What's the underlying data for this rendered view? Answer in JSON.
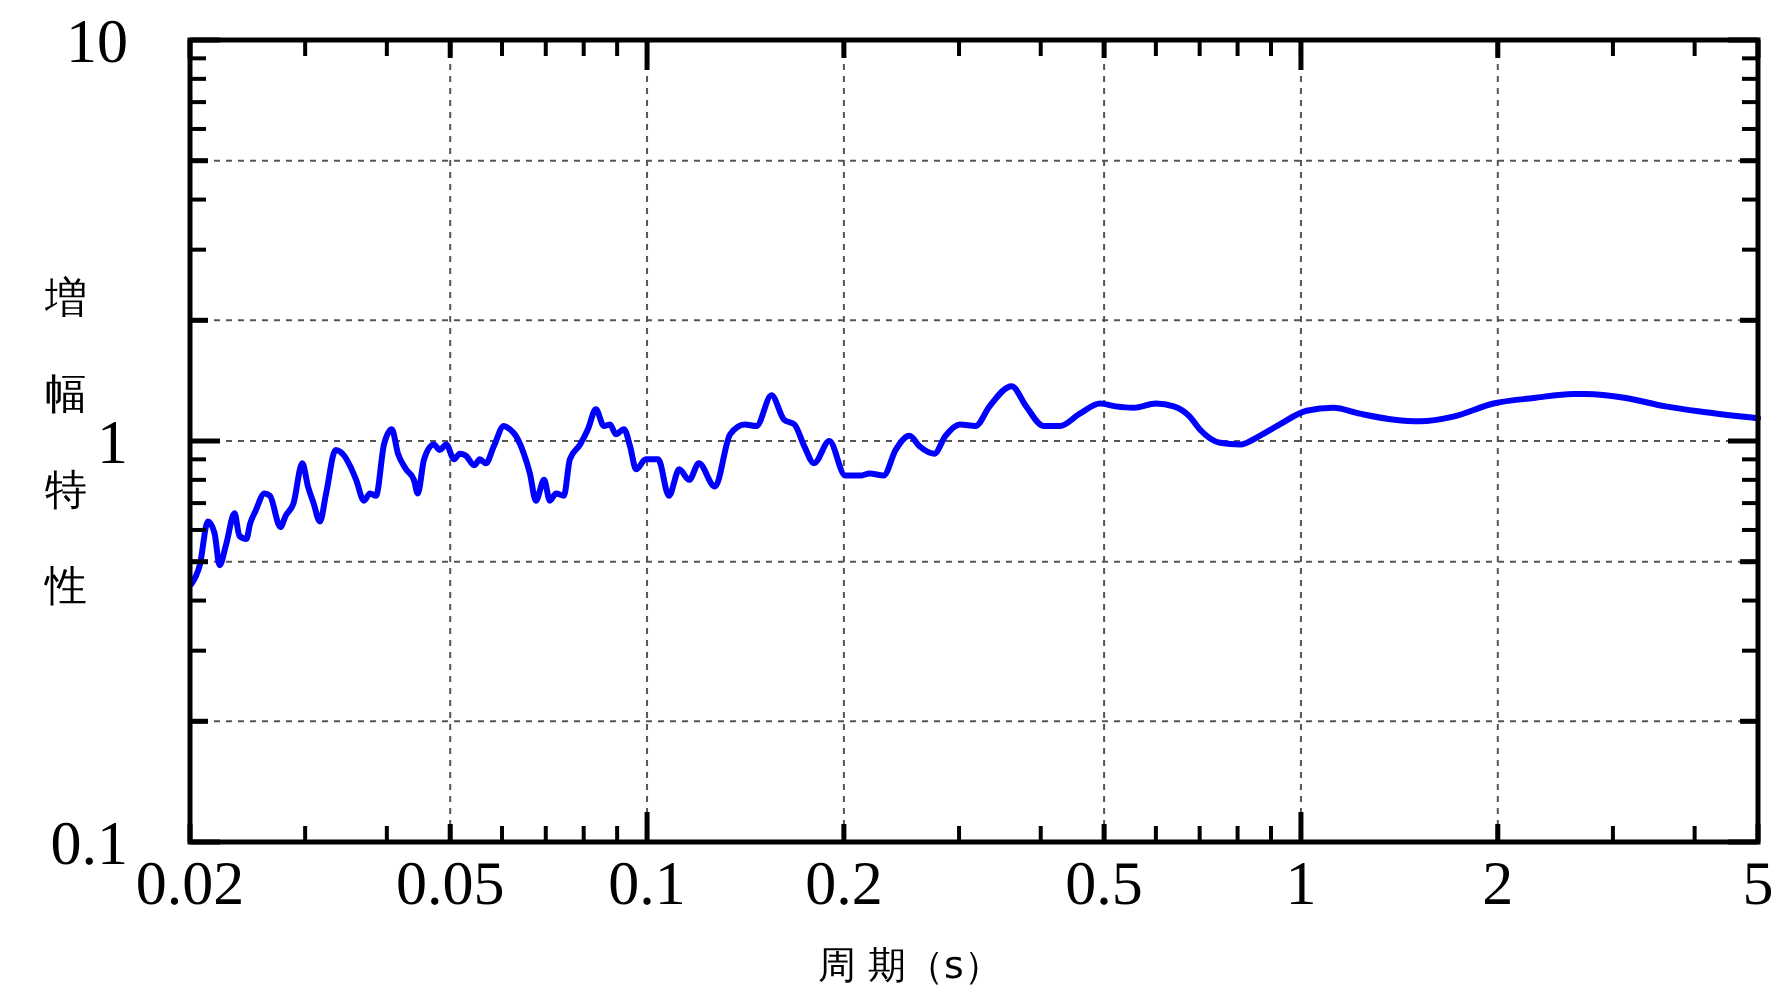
{
  "chart_data": {
    "type": "line",
    "xlabel": "周 期（s）",
    "ylabel": "増幅特性",
    "log": "xy",
    "xlim": [
      0.02,
      5
    ],
    "ylim": [
      0.1,
      10
    ],
    "xticks": [
      0.02,
      0.05,
      0.1,
      0.2,
      0.5,
      1,
      2,
      5
    ],
    "yticks": [
      0.1,
      {
        "value": 0.2,
        "label": null
      },
      {
        "value": 0.5,
        "label": null
      },
      1,
      {
        "value": 2,
        "label": null
      },
      {
        "value": 5,
        "label": null
      },
      10
    ],
    "grid": true,
    "line_style": "solid",
    "x": [
      0.0201,
      0.0207,
      0.0213,
      0.0218,
      0.0222,
      0.0227,
      0.0234,
      0.0238,
      0.0244,
      0.0247,
      0.0252,
      0.026,
      0.0265,
      0.0275,
      0.028,
      0.0288,
      0.0297,
      0.0303,
      0.0309,
      0.0316,
      0.0323,
      0.0334,
      0.0344,
      0.0351,
      0.0359,
      0.0369,
      0.0377,
      0.0385,
      0.0396,
      0.0407,
      0.0416,
      0.0428,
      0.044,
      0.0446,
      0.0456,
      0.0472,
      0.0482,
      0.0493,
      0.0507,
      0.0517,
      0.0528,
      0.0544,
      0.0555,
      0.0567,
      0.0583,
      0.0604,
      0.0617,
      0.063,
      0.0648,
      0.0662,
      0.0676,
      0.0696,
      0.071,
      0.0726,
      0.0746,
      0.0762,
      0.079,
      0.0812,
      0.0835,
      0.0859,
      0.0878,
      0.0896,
      0.0922,
      0.0942,
      0.0962,
      0.0996,
      0.104,
      0.108,
      0.112,
      0.116,
      0.12,
      0.127,
      0.134,
      0.141,
      0.147,
      0.155,
      0.162,
      0.168,
      0.174,
      0.18,
      0.19,
      0.201,
      0.212,
      0.219,
      0.23,
      0.24,
      0.252,
      0.261,
      0.275,
      0.286,
      0.301,
      0.318,
      0.334,
      0.361,
      0.38,
      0.404,
      0.428,
      0.459,
      0.493,
      0.521,
      0.555,
      0.6,
      0.639,
      0.676,
      0.7,
      0.752,
      0.807,
      0.865,
      0.928,
      1.02,
      1.12,
      1.23,
      1.39,
      1.52,
      1.71,
      1.97,
      2.27,
      2.61,
      2.73,
      3.14,
      3.61,
      4.16,
      5
    ],
    "series": [
      {
        "color": "#0000ff",
        "values": [
          0.44,
          0.49,
          0.63,
          0.59,
          0.49,
          0.55,
          0.66,
          0.58,
          0.57,
          0.62,
          0.67,
          0.74,
          0.73,
          0.61,
          0.65,
          0.7,
          0.88,
          0.77,
          0.7,
          0.63,
          0.74,
          0.95,
          0.92,
          0.87,
          0.8,
          0.71,
          0.74,
          0.73,
          0.98,
          1.07,
          0.93,
          0.85,
          0.8,
          0.74,
          0.9,
          0.98,
          0.95,
          0.98,
          0.9,
          0.93,
          0.92,
          0.87,
          0.9,
          0.88,
          0.97,
          1.09,
          1.07,
          1.03,
          0.93,
          0.83,
          0.71,
          0.8,
          0.71,
          0.74,
          0.73,
          0.9,
          0.98,
          1.07,
          1.2,
          1.09,
          1.1,
          1.04,
          1.07,
          0.97,
          0.85,
          0.9,
          0.9,
          0.73,
          0.85,
          0.8,
          0.88,
          0.77,
          1.04,
          1.1,
          1.09,
          1.3,
          1.13,
          1.1,
          0.97,
          0.88,
          1.0,
          0.82,
          0.82,
          0.83,
          0.82,
          0.95,
          1.03,
          0.97,
          0.93,
          1.03,
          1.1,
          1.09,
          1.22,
          1.37,
          1.22,
          1.09,
          1.09,
          1.17,
          1.24,
          1.22,
          1.21,
          1.24,
          1.22,
          1.15,
          1.07,
          0.99,
          0.98,
          1.03,
          1.1,
          1.19,
          1.21,
          1.17,
          1.13,
          1.12,
          1.15,
          1.24,
          1.28,
          1.31,
          1.31,
          1.28,
          1.22,
          1.18,
          1.14
        ]
      }
    ]
  }
}
